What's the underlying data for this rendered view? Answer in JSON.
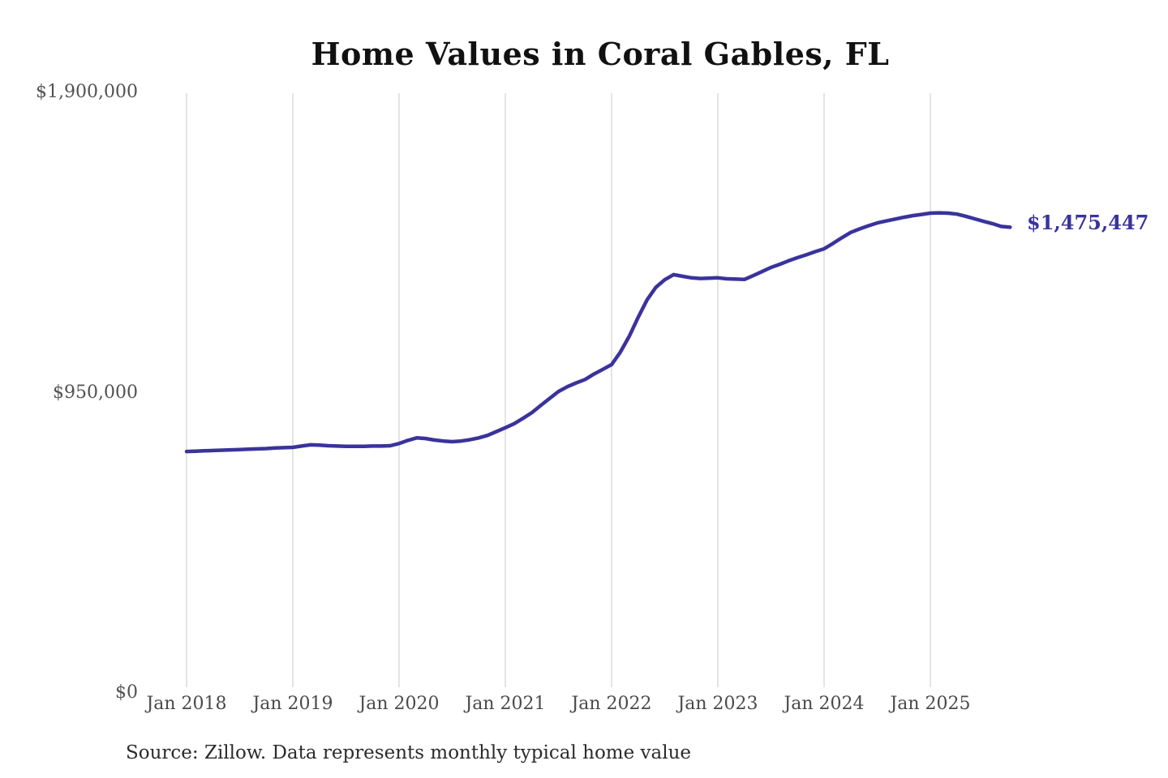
{
  "theme": {
    "background": "#ffffff",
    "line_color": "#3a339c",
    "end_label_color": "#3a339c",
    "grid_color": "#c9c9c9",
    "y_tick_color": "#525252",
    "x_tick_color": "#4a4a4a",
    "title_color": "#111111"
  },
  "chart_data": {
    "type": "line",
    "title": "Home Values in Coral Gables, FL",
    "x_start": "Jan 2018",
    "x_interval": "monthly",
    "x_tick_labels": [
      "Jan 2018",
      "Jan 2019",
      "Jan 2020",
      "Jan 2021",
      "Jan 2022",
      "Jan 2023",
      "Jan 2024",
      "Jan 2025"
    ],
    "y_tick_labels": [
      "$1,900,000",
      "$950,000",
      "$0"
    ],
    "y_tick_values": [
      1900000,
      950000,
      0
    ],
    "ylim": [
      0,
      1900000
    ],
    "grid": "vertical-yearly-only",
    "legend": "none",
    "series": [
      {
        "name": "Monthly typical home value",
        "values": [
          765000,
          766000,
          767000,
          768000,
          769000,
          770000,
          771000,
          772000,
          773000,
          774000,
          776000,
          777000,
          778000,
          782000,
          786000,
          785000,
          783000,
          782000,
          781000,
          781000,
          781000,
          782000,
          782000,
          783000,
          790000,
          800000,
          808000,
          806000,
          801000,
          798000,
          796000,
          798000,
          802000,
          808000,
          816000,
          828000,
          840000,
          853000,
          870000,
          888000,
          911000,
          933000,
          955000,
          970000,
          982000,
          993000,
          1010000,
          1025000,
          1040000,
          1080000,
          1130000,
          1190000,
          1245000,
          1285000,
          1309000,
          1325000,
          1320000,
          1315000,
          1313000,
          1314000,
          1315000,
          1312000,
          1311000,
          1310000,
          1322000,
          1335000,
          1348000,
          1358000,
          1369000,
          1379000,
          1388000,
          1398000,
          1407000,
          1424000,
          1442000,
          1459000,
          1470000,
          1480000,
          1489000,
          1495000,
          1501000,
          1507000,
          1512000,
          1516000,
          1520000,
          1521000,
          1520000,
          1517000,
          1510000,
          1502000,
          1494000,
          1487000,
          1478000,
          1475447
        ]
      }
    ],
    "end_value": 1475447,
    "end_label": "$1,475,447",
    "source_note": "Source: Zillow. Data represents monthly typical home value"
  }
}
